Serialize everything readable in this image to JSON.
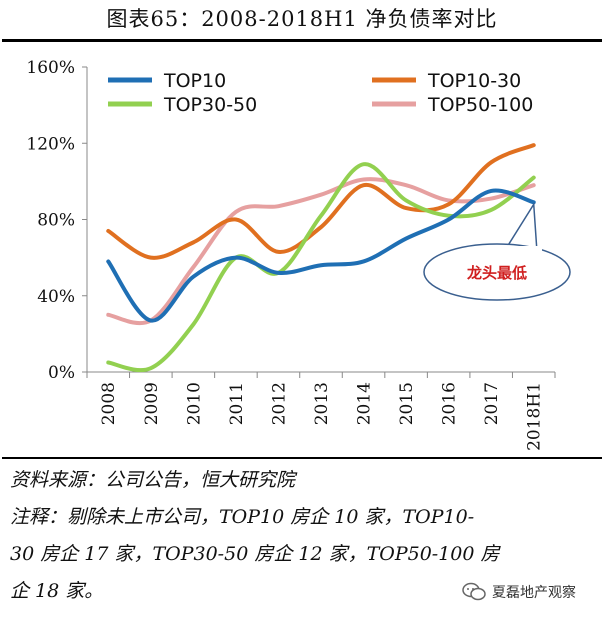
{
  "figure_title": "图表65：2008-2018H1 净负债率对比",
  "source_line": "资料来源：公司公告，恒大研究院",
  "note_line_1": "注释：剔除未上市公司，TOP10 房企 10 家，TOP10-",
  "note_line_2": "30 房企 17 家，TOP30-50 房企 12 家，TOP50-100 房",
  "note_line_3": "企 18 家。",
  "watermark_text": "夏磊地产观察",
  "chart_data": {
    "type": "line",
    "categories": [
      "2008",
      "2009",
      "2010",
      "2011",
      "2012",
      "2013",
      "2014",
      "2015",
      "2016",
      "2017",
      "2018H1"
    ],
    "ylim": [
      0,
      160
    ],
    "yticks": [
      0,
      40,
      80,
      120,
      160
    ],
    "ytick_labels": [
      "0%",
      "40%",
      "80%",
      "120%",
      "160%"
    ],
    "grid": false,
    "legend": "top",
    "series": [
      {
        "name": "TOP10",
        "color": "#1f6fb4",
        "values": [
          58,
          27,
          50,
          60,
          52,
          56,
          58,
          70,
          80,
          95,
          89
        ]
      },
      {
        "name": "TOP10-30",
        "color": "#e07020",
        "values": [
          74,
          60,
          68,
          80,
          63,
          76,
          98,
          86,
          88,
          110,
          119
        ]
      },
      {
        "name": "TOP30-50",
        "color": "#92d050",
        "values": [
          5,
          2,
          25,
          60,
          52,
          82,
          109,
          90,
          82,
          85,
          102
        ]
      },
      {
        "name": "TOP50-100",
        "color": "#e6a0a0",
        "values": [
          30,
          27,
          55,
          84,
          87,
          93,
          101,
          98,
          90,
          91,
          98
        ]
      }
    ],
    "annotation": {
      "text": "龙头最低",
      "color": "#d02020",
      "points_to": "2018H1"
    }
  }
}
